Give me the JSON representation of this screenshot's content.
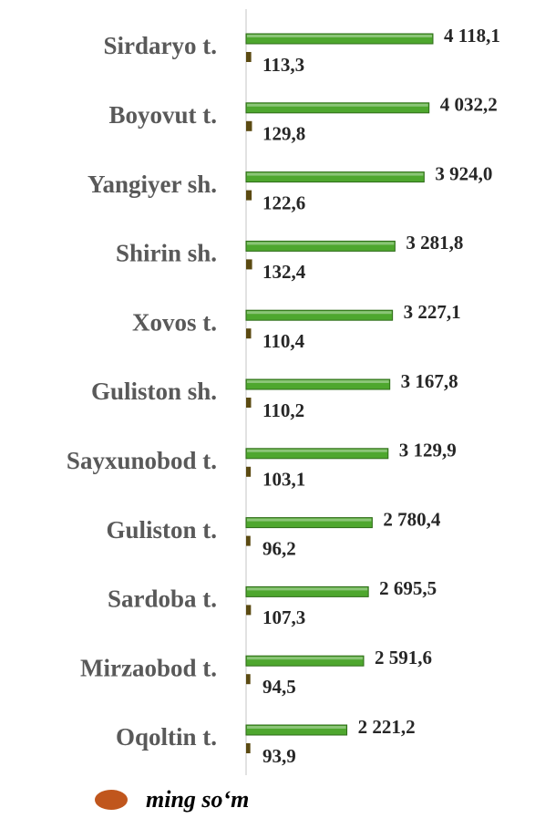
{
  "chart_data": {
    "type": "bar",
    "orientation": "horizontal",
    "categories": [
      "Sirdaryo t.",
      "Boyovut t.",
      "Yangiyer sh.",
      "Shirin sh.",
      "Xovos t.",
      "Guliston sh.",
      "Sayxunobod t.",
      "Guliston t.",
      "Sardoba t.",
      "Mirzaobod t.",
      "Oqoltin t."
    ],
    "series": [
      {
        "color": "#4ea72e",
        "values": [
          4118.1,
          4032.2,
          3924.0,
          3281.8,
          3227.1,
          3167.8,
          3129.9,
          2780.4,
          2695.5,
          2591.6,
          2221.2
        ],
        "value_labels": [
          "4 118,1",
          "4 032,2",
          "3 924,0",
          "3 281,8",
          "3 227,1",
          "3 167,8",
          "3 129,9",
          "2 780,4",
          "2 695,5",
          "2 591,6",
          "2 221,2"
        ]
      },
      {
        "color": "#5b4a12",
        "values": [
          113.3,
          129.8,
          122.6,
          132.4,
          110.4,
          110.2,
          103.1,
          96.2,
          107.3,
          94.5,
          93.9
        ],
        "value_labels": [
          "113,3",
          "129,8",
          "122,6",
          "132,4",
          "110,4",
          "110,2",
          "103,1",
          "96,2",
          "107,3",
          "94,5",
          "93,9"
        ]
      }
    ],
    "xlim": [
      0,
      4500
    ],
    "legend": {
      "label": "ming so‘m",
      "color": "#c0561d"
    }
  }
}
